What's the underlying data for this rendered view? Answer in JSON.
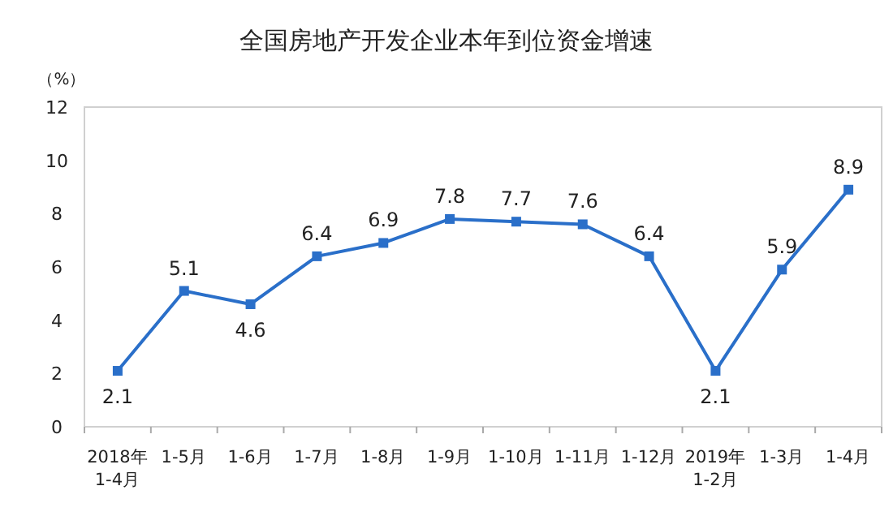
{
  "chart_data": {
    "type": "line",
    "title": "全国房地产开发企业本年到位资金增速",
    "ylabel": "（%）",
    "categories": [
      "2018年\n1-4月",
      "1-5月",
      "1-6月",
      "1-7月",
      "1-8月",
      "1-9月",
      "1-10月",
      "1-11月",
      "1-12月",
      "2019年\n1-2月",
      "1-3月",
      "1-4月"
    ],
    "values": [
      2.1,
      5.1,
      4.6,
      6.4,
      6.9,
      7.8,
      7.7,
      7.6,
      6.4,
      2.1,
      5.9,
      8.9
    ],
    "color": "#2a6fc9",
    "marker": "square",
    "data_labels": true,
    "grid": false,
    "ylim": [
      0,
      12
    ],
    "yticks": [
      0,
      2,
      4,
      6,
      8,
      10,
      12
    ]
  }
}
